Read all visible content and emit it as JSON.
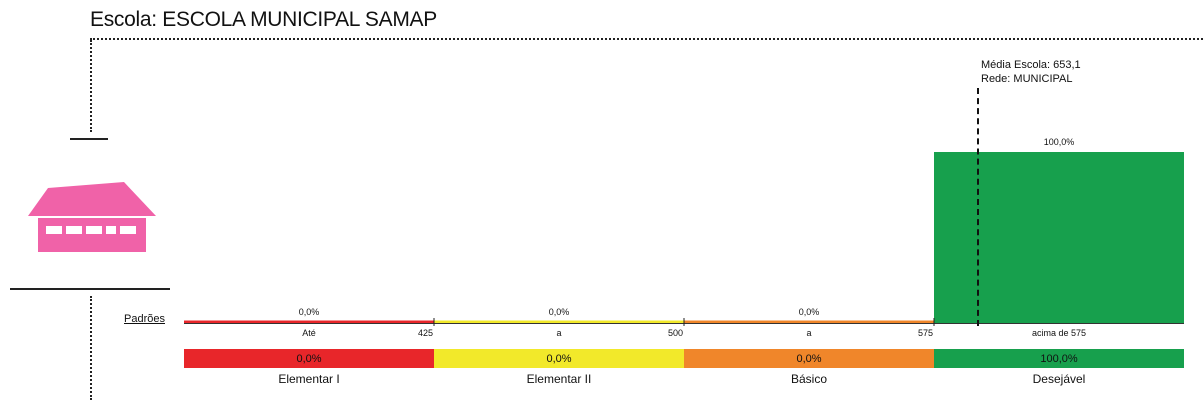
{
  "school": {
    "title": "Escola: ESCOLA MUNICIPAL SAMAP"
  },
  "legend": {
    "padroes_label": "Padrões"
  },
  "mean": {
    "school_mean_label": "Média Escola: 653,1",
    "network_label": "Rede: MUNICIPAL",
    "value": 653.1
  },
  "colors": {
    "elementar_i": "#e8262a",
    "elementar_ii": "#f2e92a",
    "basico": "#f0862a",
    "desejavel": "#17a04d",
    "icon": "#f062a8"
  },
  "chart_data": {
    "type": "bar",
    "categories": [
      "Elementar I",
      "Elementar II",
      "Básico",
      "Desejável"
    ],
    "values": [
      0.0,
      0.0,
      0.0,
      100.0
    ],
    "value_labels": [
      "0,0%",
      "0,0%",
      "0,0%",
      "100,0%"
    ],
    "top_labels": [
      "0,0%",
      "0,0%",
      "0,0%",
      "100,0%"
    ],
    "range_labels": [
      "Até",
      "a",
      "a",
      "acima de 575"
    ],
    "thresholds": [
      "425",
      "500",
      "575"
    ],
    "ylim": [
      0,
      100
    ],
    "reference_line": {
      "value": 653.1
    }
  }
}
